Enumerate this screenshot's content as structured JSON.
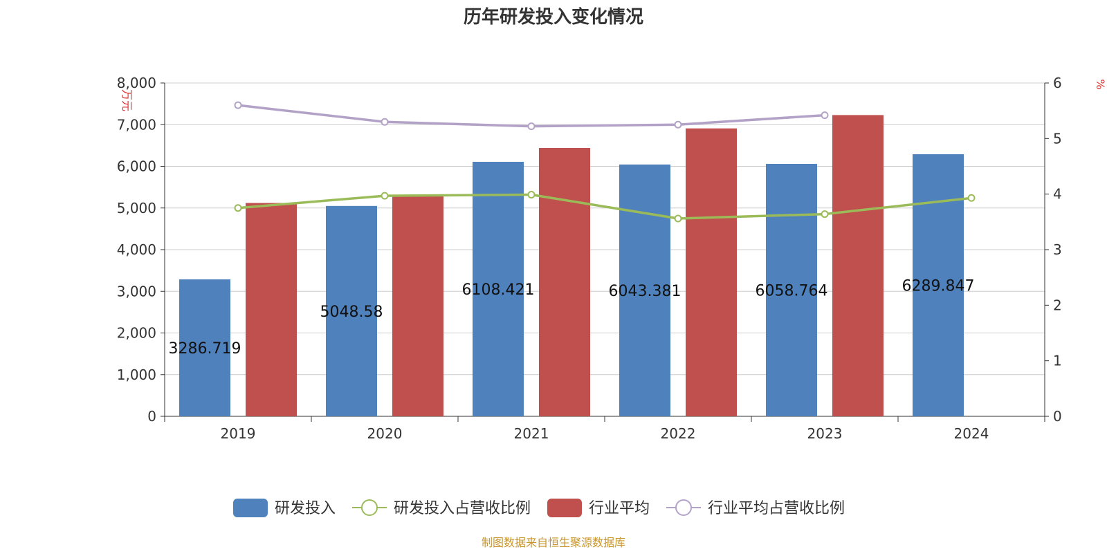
{
  "chart_data": {
    "type": "bar",
    "title": "历年研发投入变化情况",
    "categories": [
      "2019",
      "2020",
      "2021",
      "2022",
      "2023",
      "2024"
    ],
    "y_left": {
      "unit": "万元",
      "min": 0,
      "max": 8000,
      "ticks": [
        0,
        1000,
        2000,
        3000,
        4000,
        5000,
        6000,
        7000,
        8000
      ],
      "tick_labels": [
        "0",
        "1,000",
        "2,000",
        "3,000",
        "4,000",
        "5,000",
        "6,000",
        "7,000",
        "8,000"
      ]
    },
    "y_right": {
      "unit": "%",
      "min": 0,
      "max": 6,
      "ticks": [
        0,
        1,
        2,
        3,
        4,
        5,
        6
      ],
      "tick_labels": [
        "0",
        "1",
        "2",
        "3",
        "4",
        "5",
        "6"
      ]
    },
    "grid": true,
    "legend_position": "bottom",
    "series": [
      {
        "name": "研发投入",
        "kind": "bar",
        "axis": "left",
        "color": "#4f81bd",
        "values": [
          3286.719,
          5048.58,
          6108.421,
          6043.381,
          6058.764,
          6289.847
        ],
        "labels": [
          "3286.719",
          "5048.58",
          "6108.421",
          "6043.381",
          "6058.764",
          "6289.847"
        ]
      },
      {
        "name": "研发投入占营收比例",
        "kind": "line",
        "axis": "right",
        "color": "#9bbb59",
        "values": [
          3.75,
          3.97,
          3.99,
          3.56,
          3.64,
          3.93
        ]
      },
      {
        "name": "行业平均",
        "kind": "bar",
        "axis": "left",
        "color": "#c0504d",
        "values": [
          5120,
          5280,
          6440,
          6910,
          7230,
          null
        ]
      },
      {
        "name": "行业平均占营收比例",
        "kind": "line",
        "axis": "right",
        "color": "#b3a2c7",
        "values": [
          5.6,
          5.3,
          5.22,
          5.25,
          5.42,
          null
        ]
      }
    ],
    "source_note": "制图数据来自恒生聚源数据库"
  }
}
